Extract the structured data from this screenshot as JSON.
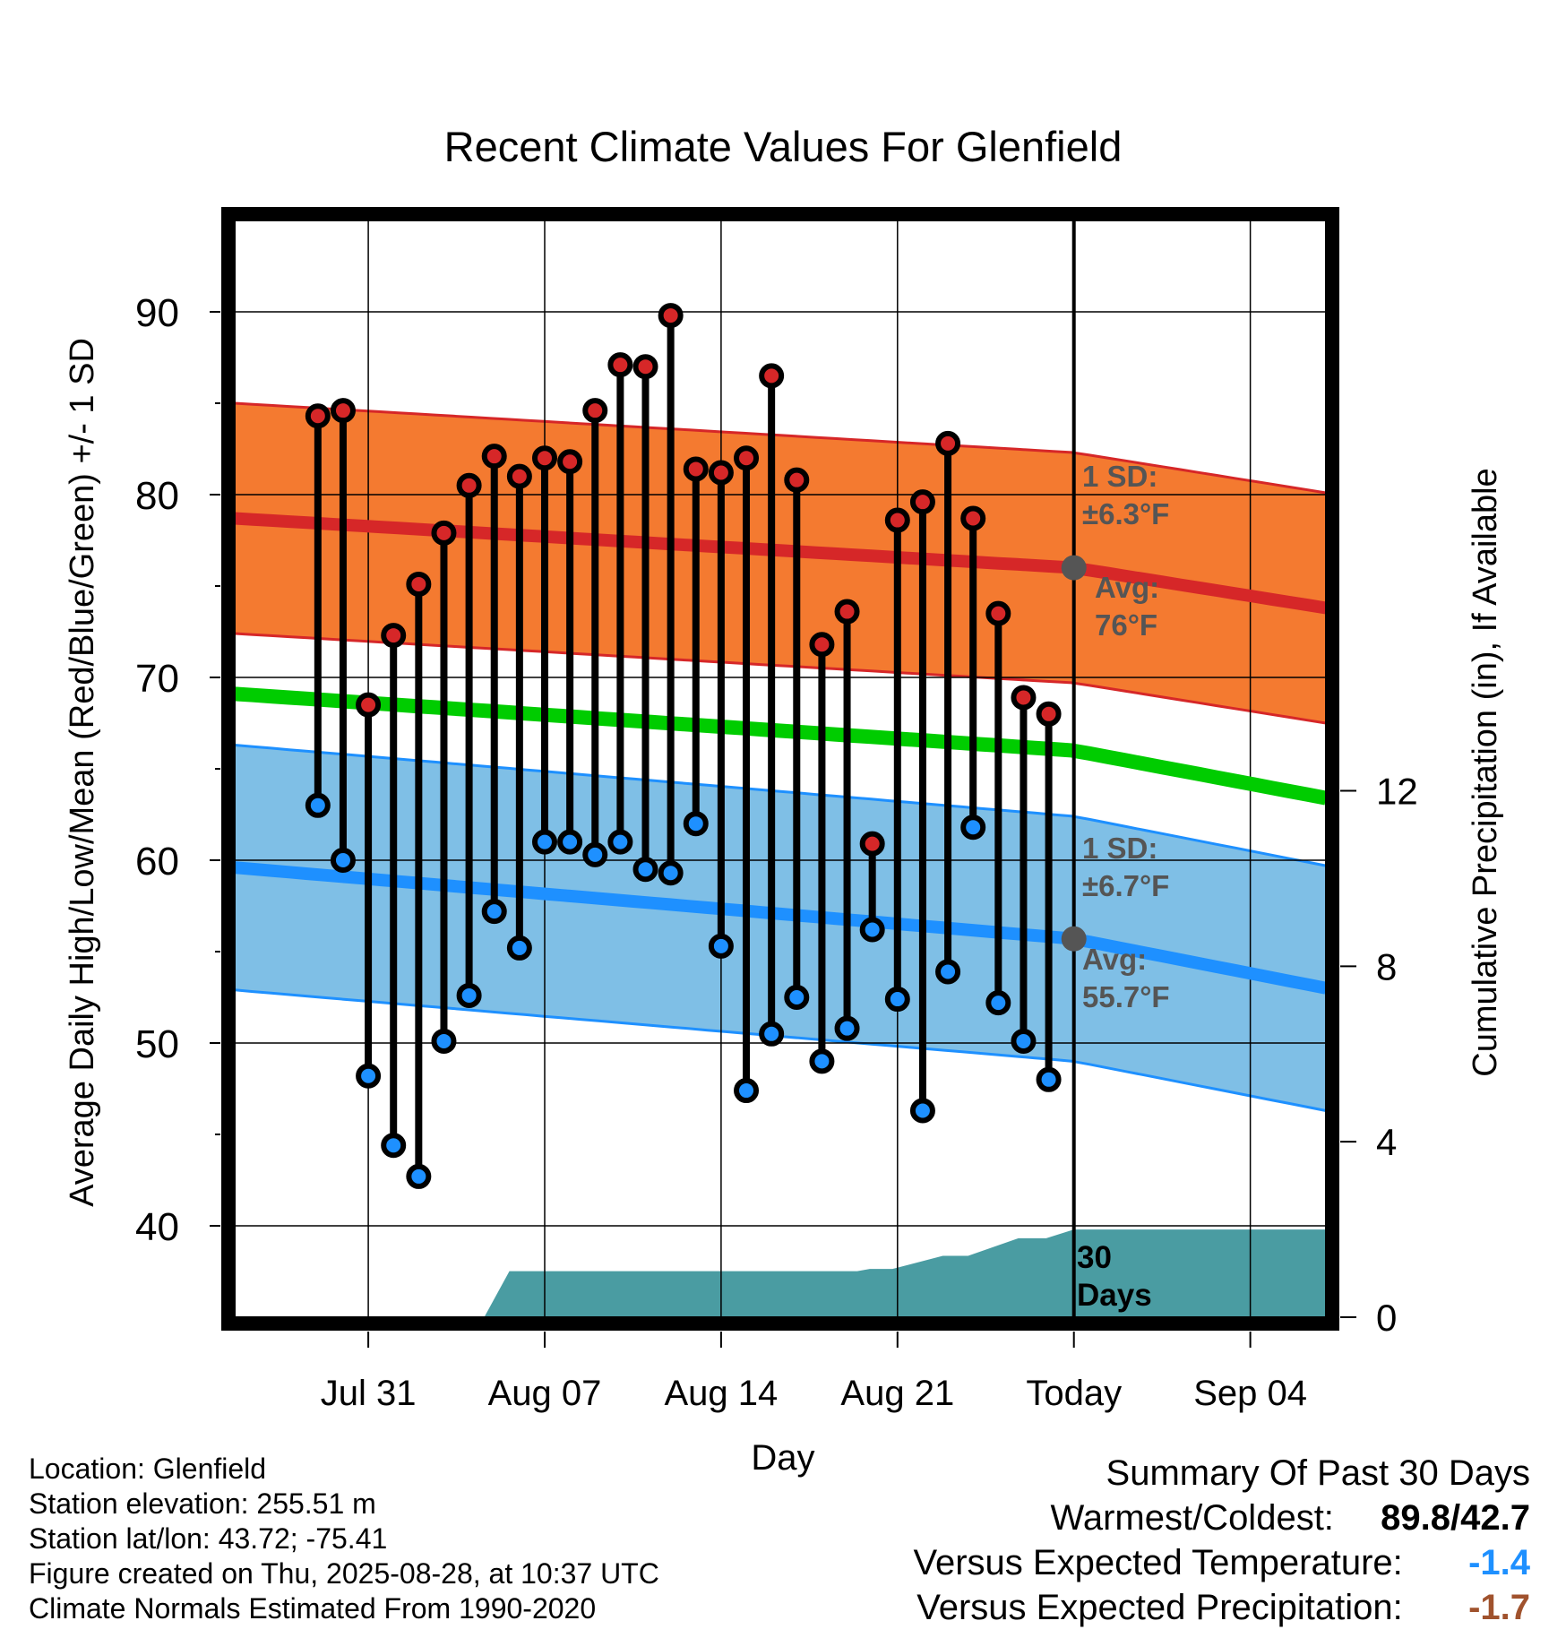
{
  "chart_data": {
    "type": "line",
    "title": "Recent Climate Values For Glenfield",
    "xlabel": "Day",
    "ylabel": "Average Daily High/Low/Mean (Red/Blue/Green) +/- 1 SD",
    "ylabel_right": "Cumulative Precipitation (in), If Available",
    "ylim": [
      35,
      95
    ],
    "ylim_right": [
      0,
      25
    ],
    "x_ticks": [
      "Jul 31",
      "Aug 07",
      "Aug 14",
      "Aug 21",
      "Today",
      "Sep 04"
    ],
    "y_ticks": [
      40,
      50,
      60,
      70,
      80,
      90
    ],
    "y_right_ticks": [
      0,
      4,
      8,
      12
    ],
    "x_range_days": [
      -33.3,
      10
    ],
    "grid": true,
    "today_index": 0,
    "normals": {
      "high_avg": {
        "x": [
          -33.3,
          0,
          10
        ],
        "values": [
          78.7,
          76.0,
          73.8
        ]
      },
      "high_sd": 6.3,
      "mean_avg": {
        "x": [
          -33.3,
          0,
          10
        ],
        "values": [
          69.1,
          66.0,
          63.4
        ]
      },
      "low_avg": {
        "x": [
          -33.3,
          0,
          10
        ],
        "values": [
          59.6,
          55.7,
          53.0
        ]
      },
      "low_sd": 6.7
    },
    "series": [
      {
        "name": "High",
        "color": "#d62728",
        "x": [
          -30,
          -29,
          -28,
          -27,
          -26,
          -25,
          -24,
          -23,
          -22,
          -21,
          -20,
          -19,
          -18,
          -17,
          -16,
          -15,
          -14,
          -13,
          -12,
          -11,
          -10,
          -9,
          -8,
          -7,
          -6,
          -5,
          -4,
          -3,
          -2,
          -1
        ],
        "values": [
          84.3,
          84.6,
          68.5,
          72.3,
          75.1,
          77.9,
          80.5,
          82.1,
          81.0,
          82.0,
          81.8,
          84.6,
          87.1,
          87.0,
          89.8,
          81.4,
          81.2,
          82.0,
          86.5,
          80.8,
          71.8,
          73.6,
          60.9,
          78.6,
          79.6,
          82.8,
          78.7,
          73.5,
          68.9,
          68.0
        ]
      },
      {
        "name": "Low",
        "color": "#1e90ff",
        "x": [
          -30,
          -29,
          -28,
          -27,
          -26,
          -25,
          -24,
          -23,
          -22,
          -21,
          -20,
          -19,
          -18,
          -17,
          -16,
          -15,
          -14,
          -13,
          -12,
          -11,
          -10,
          -9,
          -8,
          -7,
          -6,
          -5,
          -4,
          -3,
          -2,
          -1
        ],
        "values": [
          63.0,
          60.0,
          48.2,
          44.4,
          42.7,
          50.1,
          52.6,
          57.2,
          55.2,
          61.0,
          61.0,
          60.3,
          61.0,
          59.5,
          59.3,
          62.0,
          55.3,
          47.4,
          50.5,
          52.5,
          49.0,
          50.8,
          56.2,
          52.4,
          46.3,
          53.9,
          61.8,
          52.2,
          50.1,
          48.0
        ]
      },
      {
        "name": "Precipitation",
        "color": "#4a9ca2",
        "x": [
          -33.3,
          -23.4,
          -22.4,
          -8.6,
          -8.1,
          -7.2,
          -5.2,
          -4.2,
          -2.2,
          -1.1,
          0,
          10
        ],
        "values": [
          0,
          0,
          1.05,
          1.05,
          1.1,
          1.1,
          1.4,
          1.4,
          1.8,
          1.8,
          2.0,
          2.0
        ]
      }
    ],
    "annotations": {
      "high_sd_label": "1 SD:",
      "high_sd_value": "±6.3°F",
      "high_avg_label": "Avg:",
      "high_avg_value": "76°F",
      "low_sd_label": "1 SD:",
      "low_sd_value": "±6.7°F",
      "low_avg_label": "Avg:",
      "low_avg_value": "55.7°F",
      "precip_label_1": "30",
      "precip_label_2": "Days"
    }
  },
  "colors": {
    "high_band": "#f47a30",
    "high_line": "#d62728",
    "low_band": "#7fbfe6",
    "low_line": "#1e90ff",
    "mean_line": "#00cc00",
    "precip": "#4a9ca2",
    "high_marker": "#d62728",
    "low_marker": "#1e90ff",
    "annotation_text": "#555555",
    "temp_diff": "#1e90ff",
    "precip_diff": "#a0522d"
  },
  "meta": {
    "location": "Location: Glenfield",
    "elevation": "Station elevation: 255.51 m",
    "latlon": "Station lat/lon: 43.72; -75.41",
    "created": "Figure created on Thu, 2025-08-28, at 10:37 UTC",
    "normals": "Climate Normals Estimated From 1990-2020"
  },
  "summary": {
    "title": "Summary Of Past 30 Days",
    "warmest_label": "Warmest/Coldest:",
    "warmest_value": "89.8/42.7",
    "temp_label": "Versus Expected Temperature:",
    "temp_value": "-1.4",
    "precip_label": "Versus Expected Precipitation:",
    "precip_value": "-1.7"
  }
}
